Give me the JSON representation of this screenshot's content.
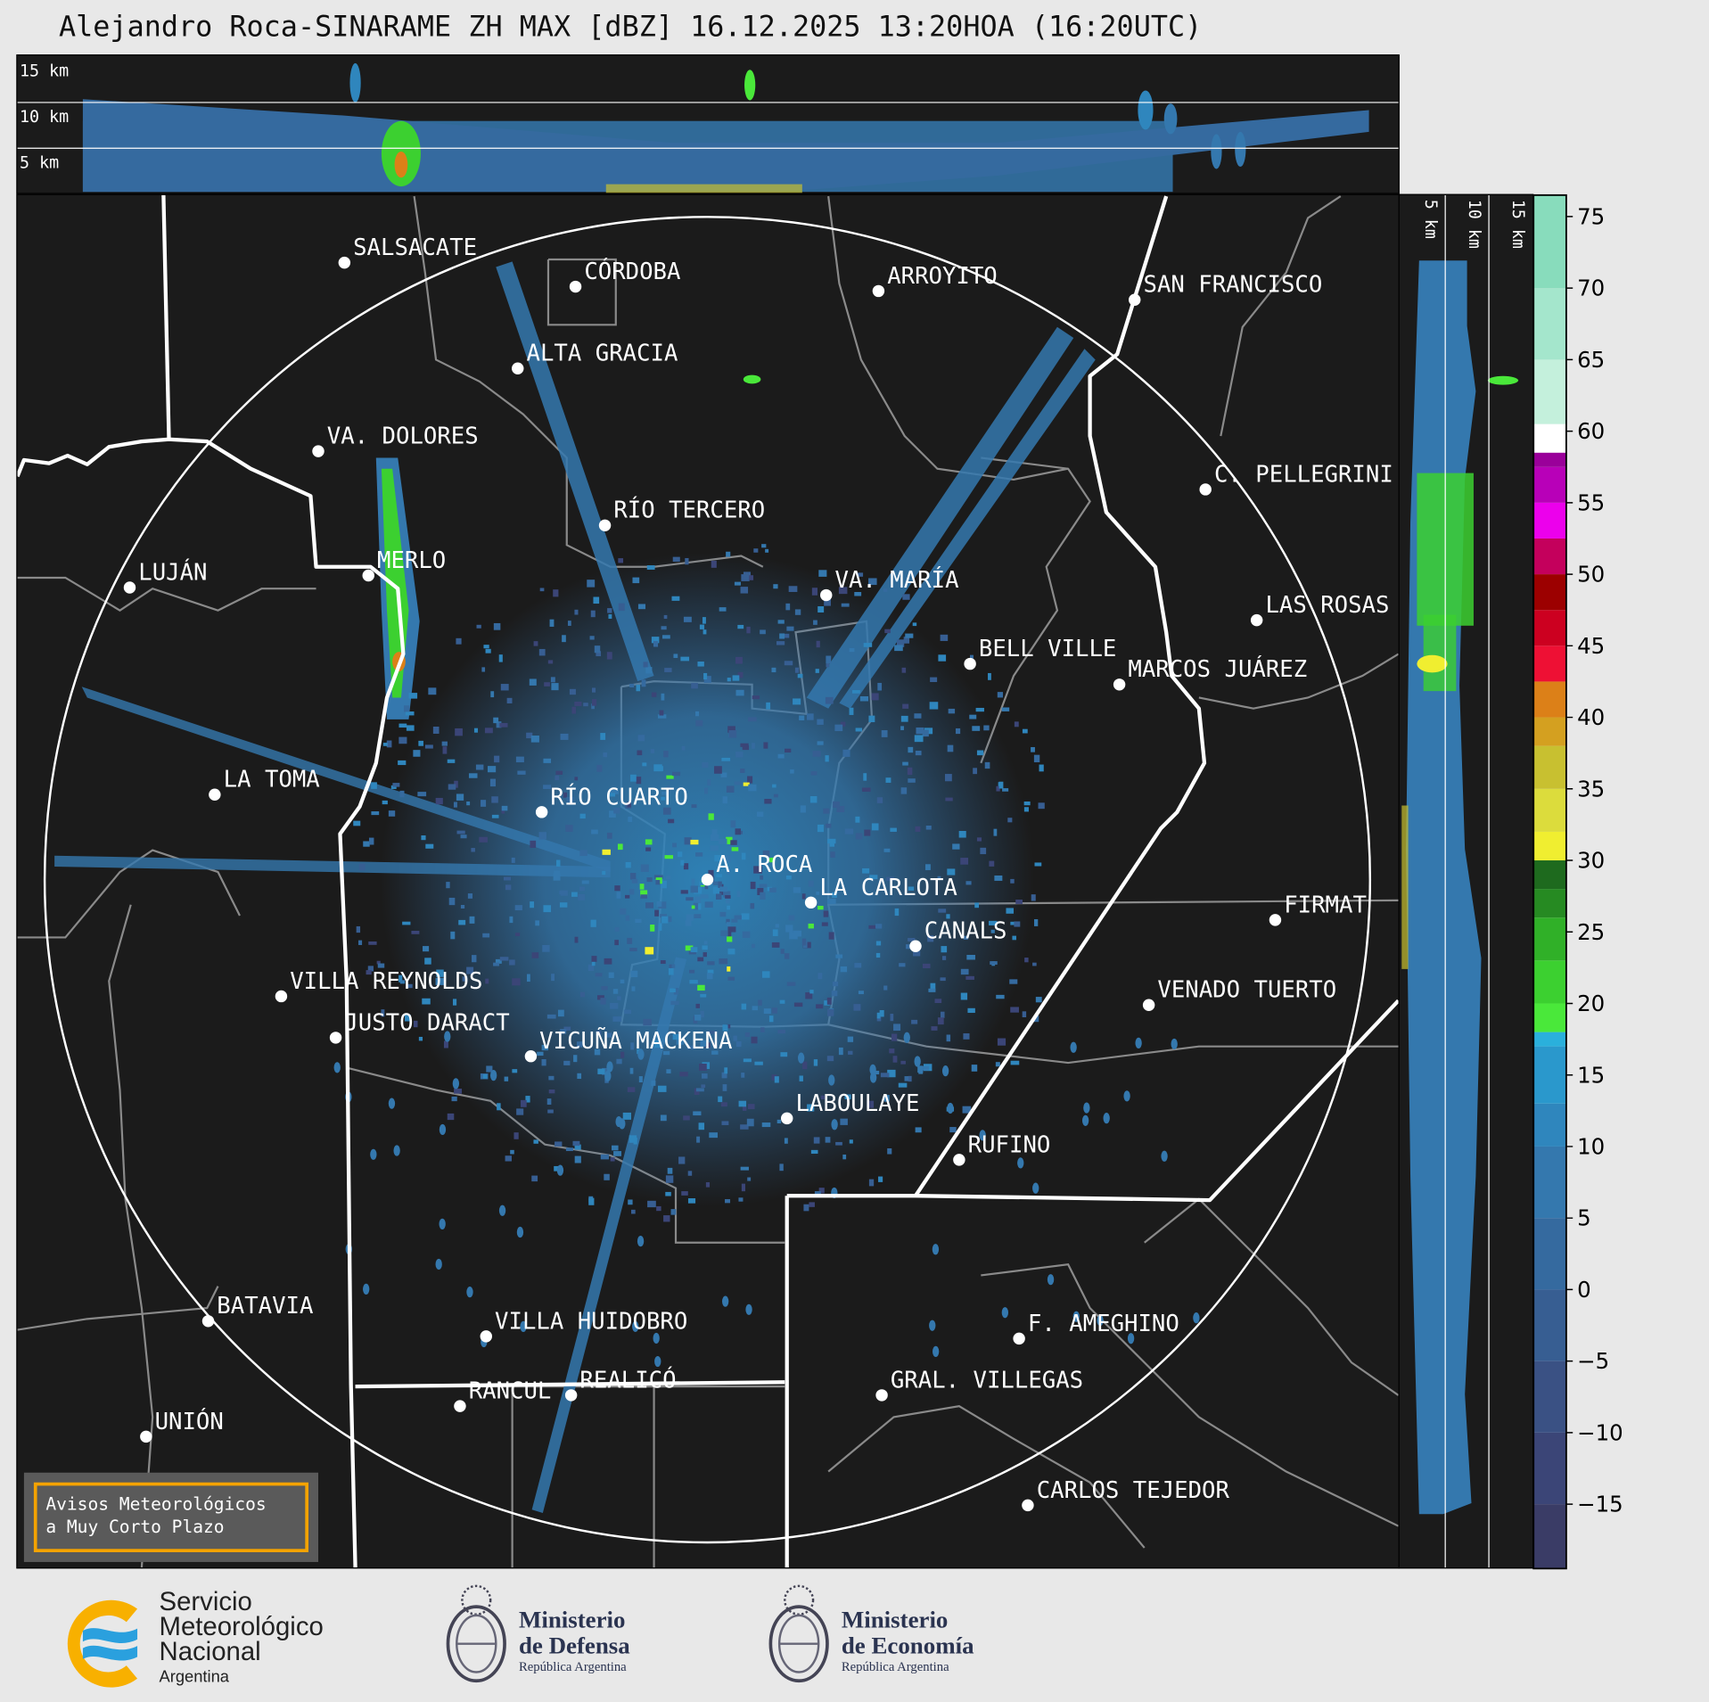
{
  "title": "Alejandro Roca-SINARAME ZH MAX [dBZ] 16.12.2025 13:20HOA (16:20UTC)",
  "top_section": {
    "height_labels": [
      "15 km",
      "10 km",
      "5 km"
    ]
  },
  "side_section": {
    "height_labels": [
      "5 km",
      "10 km",
      "15 km"
    ]
  },
  "colorbar": {
    "units": "dBZ",
    "range": [
      -19.5,
      76.5
    ],
    "ticks": [
      "75",
      "70",
      "65",
      "60",
      "55",
      "50",
      "45",
      "40",
      "35",
      "30",
      "25",
      "20",
      "15",
      "10",
      "5",
      "0",
      "−5",
      "−10",
      "−15"
    ],
    "colors": [
      {
        "from": -20,
        "to": -15,
        "color": "#3a3c66"
      },
      {
        "from": -15,
        "to": -10,
        "color": "#3b4577"
      },
      {
        "from": -10,
        "to": -5,
        "color": "#3a5184"
      },
      {
        "from": -5,
        "to": 0,
        "color": "#375e92"
      },
      {
        "from": 0,
        "to": 5,
        "color": "#356a9f"
      },
      {
        "from": 5,
        "to": 10,
        "color": "#3478ae"
      },
      {
        "from": 10,
        "to": 13,
        "color": "#2f86bd"
      },
      {
        "from": 13,
        "to": 17,
        "color": "#2a98cc"
      },
      {
        "from": 17,
        "to": 18,
        "color": "#2ab0dc"
      },
      {
        "from": 18,
        "to": 20,
        "color": "#4ae83a"
      },
      {
        "from": 20,
        "to": 23,
        "color": "#3cd030"
      },
      {
        "from": 23,
        "to": 26,
        "color": "#30b028"
      },
      {
        "from": 26,
        "to": 28,
        "color": "#268a22"
      },
      {
        "from": 28,
        "to": 30,
        "color": "#1e6a1e"
      },
      {
        "from": 30,
        "to": 32,
        "color": "#f0ee30"
      },
      {
        "from": 32,
        "to": 35,
        "color": "#dcdc3c"
      },
      {
        "from": 35,
        "to": 38,
        "color": "#c8c030"
      },
      {
        "from": 38,
        "to": 40,
        "color": "#d4a020"
      },
      {
        "from": 40,
        "to": 42.5,
        "color": "#dc8018"
      },
      {
        "from": 42.5,
        "to": 45,
        "color": "#ee1034"
      },
      {
        "from": 45,
        "to": 47.5,
        "color": "#cc0020"
      },
      {
        "from": 47.5,
        "to": 50,
        "color": "#9c0000"
      },
      {
        "from": 50,
        "to": 52.5,
        "color": "#c4005c"
      },
      {
        "from": 52.5,
        "to": 55,
        "color": "#ec00ec"
      },
      {
        "from": 55,
        "to": 57.5,
        "color": "#b800b8"
      },
      {
        "from": 57.5,
        "to": 58.5,
        "color": "#9a009a"
      },
      {
        "from": 58.5,
        "to": 60.5,
        "color": "#ffffff"
      },
      {
        "from": 60.5,
        "to": 65,
        "color": "#c4f0dc"
      },
      {
        "from": 65,
        "to": 70,
        "color": "#a4e6cc"
      },
      {
        "from": 70,
        "to": 76.5,
        "color": "#88dcbc"
      }
    ]
  },
  "cities": [
    "SALSACATE",
    "CÓRDOBA",
    "ARROYITO",
    "SAN FRANCISCO",
    "ALTA GRACIA",
    "VA. DOLORES",
    "C. PELLEGRINI",
    "RÍO TERCERO",
    "LUJÁN",
    "MERLO",
    "VA. MARÍA",
    "LAS ROSAS",
    "BELL VILLE",
    "MARCOS JUÁREZ",
    "LA TOMA",
    "RÍO CUARTO",
    "A. ROCA",
    "LA CARLOTA",
    "FIRMAT",
    "CANALS",
    "VILLA REYNOLDS",
    "VENADO TUERTO",
    "JUSTO DARACT",
    "VICUÑA MACKENA",
    "LABOULAYE",
    "RUFINO",
    "BATAVIA",
    "VILLA HUIDOBRO",
    "F. AMEGHINO",
    "RANCUL",
    "REALICÓ",
    "GRAL. VILLEGAS",
    "UNIÓN",
    "CARLOS TEJEDOR"
  ],
  "warning_box": {
    "line1": "Avisos Meteorológicos",
    "line2": "a Muy Corto Plazo"
  },
  "logos": {
    "smn": {
      "line1": "Servicio",
      "line2": "Meteorológico",
      "line3": "Nacional",
      "line4": "Argentina"
    },
    "defensa": {
      "line1": "Ministerio",
      "line2": "de Defensa",
      "line3": "República Argentina"
    },
    "economia": {
      "line1": "Ministerio",
      "line2": "de Economía",
      "line3": "República Argentina"
    }
  }
}
